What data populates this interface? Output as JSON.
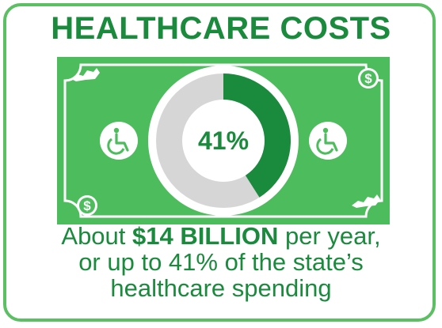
{
  "title": "HEALTHCARE COSTS",
  "bill": {
    "percent_label": "41%",
    "percent_value": 41,
    "corner_symbol": "$",
    "colors": {
      "bill_green": "#4cbc5c",
      "dark_green": "#1a8a3c",
      "grey": "#d6d6d6",
      "white": "#ffffff"
    },
    "icons": [
      "wheelchair-icon",
      "wheelchair-icon",
      "dollar-icon",
      "dollar-icon",
      "kentucky-state-icon",
      "kentucky-state-icon"
    ]
  },
  "caption": {
    "prefix": "About ",
    "amount": "$14 BILLION",
    "suffix": " per year,",
    "line2": "or up to 41% of the state’s",
    "line3": "healthcare spending"
  }
}
